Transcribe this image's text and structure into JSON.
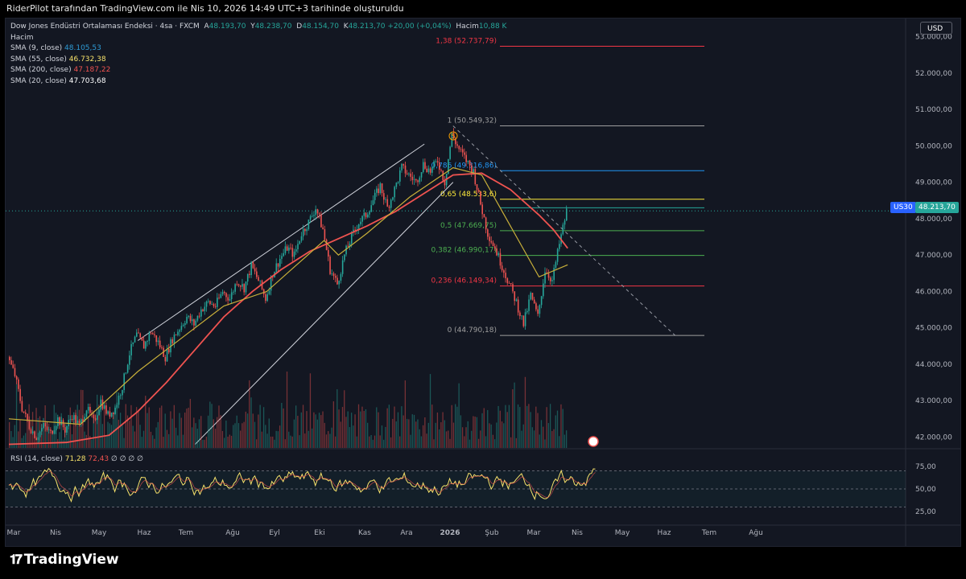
{
  "header": {
    "title": "RiderPilot tarafından TradingView.com ile Nis 10, 2026 14:49 UTC+3 tarihinde oluşturuldu"
  },
  "legend": {
    "symbol": "Dow Jones Endüstri Ortalaması Endeksi · 4sa · FXCM",
    "ohlc": {
      "A": "48.193,70",
      "Y": "48.238,70",
      "D": "48.154,70",
      "K": "48.213,70",
      "change": "+20,00 (+0,04%)"
    },
    "volume_label": "Hacim",
    "volume_value": "10,88 K",
    "volume_row": "Hacim",
    "sma": [
      {
        "label": "SMA (9, close)",
        "value": "48.105,53",
        "color": "#2e9bd6"
      },
      {
        "label": "SMA (55, close)",
        "value": "46.732,38",
        "color": "#f7e26b"
      },
      {
        "label": "SMA (200, close)",
        "value": "47.187,22",
        "color": "#ef5350"
      },
      {
        "label": "SMA (20, close)",
        "value": "47.703,68",
        "color": "#ffffff"
      }
    ]
  },
  "toolbar": {
    "currency": "USD"
  },
  "price_tag": {
    "symbol": "US30",
    "value": "48.213,70"
  },
  "rsi": {
    "label": "RSI (14, close)",
    "value1": "71,28",
    "value2": "72,43",
    "extras": "∅ ∅ ∅ ∅"
  },
  "chart_data": [
    {
      "type": "candlestick",
      "yaxis_ticks": [
        "53.000,00",
        "52.000,00",
        "51.000,00",
        "50.000,00",
        "49.000,00",
        "48.000,00",
        "47.000,00",
        "46.000,00",
        "45.000,00",
        "44.000,00",
        "43.000,00",
        "42.000,00"
      ],
      "ylim": [
        41700,
        53500
      ],
      "x_ticks": [
        "Mar",
        "Nis",
        "May",
        "Haz",
        "Tem",
        "Ağu",
        "Eyl",
        "Eki",
        "Kas",
        "Ara",
        "2026",
        "Şub",
        "Mar",
        "Nis",
        "May",
        "Haz",
        "Tem",
        "Ağu"
      ],
      "close_path": [
        [
          0,
          44200
        ],
        [
          1,
          43700
        ],
        [
          2,
          42800
        ],
        [
          3,
          42300
        ],
        [
          4,
          42000
        ],
        [
          5,
          42300
        ],
        [
          6,
          42100
        ],
        [
          7,
          42500
        ],
        [
          8,
          42200
        ],
        [
          9,
          42600
        ],
        [
          10,
          42300
        ],
        [
          11,
          42800
        ],
        [
          12,
          42400
        ],
        [
          13,
          43000
        ],
        [
          14,
          42600
        ],
        [
          15,
          42800
        ],
        [
          16,
          43400
        ],
        [
          17,
          44300
        ],
        [
          18,
          44800
        ],
        [
          19,
          44500
        ],
        [
          20,
          44900
        ],
        [
          21,
          44600
        ],
        [
          22,
          44200
        ],
        [
          23,
          44700
        ],
        [
          24,
          45000
        ],
        [
          25,
          45300
        ],
        [
          26,
          45100
        ],
        [
          27,
          45500
        ],
        [
          28,
          45700
        ],
        [
          29,
          45600
        ],
        [
          30,
          46000
        ],
        [
          31,
          45800
        ],
        [
          32,
          46300
        ],
        [
          33,
          46100
        ],
        [
          34,
          46700
        ],
        [
          35,
          46300
        ],
        [
          36,
          45800
        ],
        [
          37,
          46500
        ],
        [
          38,
          46900
        ],
        [
          39,
          47200
        ],
        [
          40,
          47000
        ],
        [
          41,
          47600
        ],
        [
          42,
          47900
        ],
        [
          43,
          48300
        ],
        [
          44,
          47700
        ],
        [
          45,
          46600
        ],
        [
          46,
          46200
        ],
        [
          47,
          47000
        ],
        [
          48,
          47500
        ],
        [
          49,
          47900
        ],
        [
          50,
          48100
        ],
        [
          51,
          48500
        ],
        [
          52,
          48900
        ],
        [
          53,
          48300
        ],
        [
          54,
          48800
        ],
        [
          55,
          49400
        ],
        [
          56,
          49200
        ],
        [
          57,
          49000
        ],
        [
          58,
          49500
        ],
        [
          59,
          49300
        ],
        [
          60,
          49600
        ],
        [
          61,
          49000
        ],
        [
          62,
          50300
        ],
        [
          63,
          49900
        ],
        [
          64,
          49600
        ],
        [
          65,
          49300
        ],
        [
          66,
          48400
        ],
        [
          67,
          47600
        ],
        [
          68,
          47200
        ],
        [
          69,
          46700
        ],
        [
          70,
          46200
        ],
        [
          71,
          45700
        ],
        [
          72,
          45100
        ],
        [
          73,
          45900
        ],
        [
          74,
          45300
        ],
        [
          75,
          46600
        ],
        [
          76,
          46300
        ],
        [
          77,
          47300
        ],
        [
          78,
          48200
        ]
      ],
      "sma200": [
        [
          0,
          41800
        ],
        [
          8,
          41850
        ],
        [
          14,
          42050
        ],
        [
          18,
          42700
        ],
        [
          22,
          43500
        ],
        [
          26,
          44400
        ],
        [
          30,
          45300
        ],
        [
          34,
          46000
        ],
        [
          38,
          46600
        ],
        [
          42,
          47100
        ],
        [
          46,
          47450
        ],
        [
          50,
          47800
        ],
        [
          54,
          48200
        ],
        [
          58,
          48700
        ],
        [
          62,
          49200
        ],
        [
          66,
          49250
        ],
        [
          70,
          48800
        ],
        [
          74,
          48100
        ],
        [
          76,
          47700
        ],
        [
          78,
          47187
        ]
      ],
      "sma55": [
        [
          0,
          42500
        ],
        [
          10,
          42350
        ],
        [
          18,
          43800
        ],
        [
          24,
          44700
        ],
        [
          30,
          45600
        ],
        [
          36,
          46000
        ],
        [
          40,
          46700
        ],
        [
          44,
          47400
        ],
        [
          46,
          47000
        ],
        [
          50,
          47600
        ],
        [
          56,
          48600
        ],
        [
          62,
          49400
        ],
        [
          66,
          49200
        ],
        [
          70,
          47800
        ],
        [
          74,
          46400
        ],
        [
          78,
          46732
        ]
      ],
      "fibonacci": {
        "levels": [
          {
            "ratio": "1,38",
            "price": "52.737,79",
            "value": 52737.79,
            "color": "#f23645"
          },
          {
            "ratio": "1",
            "price": "50.549,32",
            "value": 50549.32,
            "color": "#9e9e9e"
          },
          {
            "ratio": "0,786",
            "price": "49.316,86",
            "value": 49316.86,
            "color": "#2196f3"
          },
          {
            "ratio": "0,65",
            "price": "48.533,6",
            "value": 48533.6,
            "color": "#ffeb3b"
          },
          {
            "ratio": "",
            "price": "48.3",
            "value": 48300,
            "color": "#26a69a"
          },
          {
            "ratio": "0,5",
            "price": "47.669,75",
            "value": 47669.75,
            "color": "#4caf50"
          },
          {
            "ratio": "0,382",
            "price": "46.990,17",
            "value": 46990.17,
            "color": "#4caf50"
          },
          {
            "ratio": "0,236",
            "price": "46.149,34",
            "value": 46149.34,
            "color": "#f23645"
          },
          {
            "ratio": "0",
            "price": "44.790,18",
            "value": 44790.18,
            "color": "#9e9e9e"
          }
        ]
      },
      "annotation": "5",
      "channel": {
        "upper": [
          [
            18,
            44650
          ],
          [
            58,
            50050
          ]
        ],
        "lower": [
          [
            26,
            41800
          ],
          [
            62,
            49000
          ]
        ]
      },
      "trendline": [
        [
          62,
          50550
        ],
        [
          93,
          44790
        ]
      ]
    },
    {
      "type": "line",
      "name": "RSI",
      "yaxis_ticks": [
        "75,00",
        "50,00",
        "25,00"
      ],
      "ylim": [
        10,
        90
      ],
      "bands": [
        70,
        50,
        30
      ]
    }
  ]
}
